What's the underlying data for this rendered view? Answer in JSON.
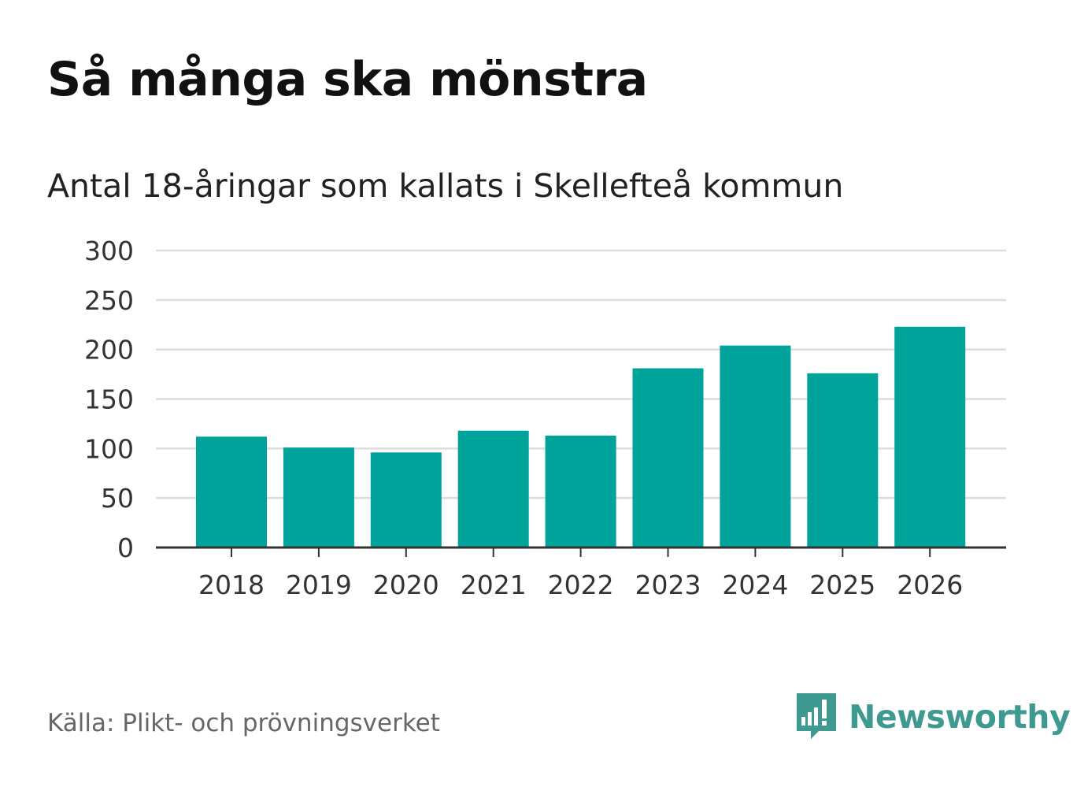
{
  "header": {
    "title": "Så många ska mönstra",
    "subtitle": "Antal 18-åringar som kallats i Skellefteå kommun"
  },
  "footer": {
    "source": "Källa: Plikt- och prövningsverket",
    "brand": "Newsworthy"
  },
  "colors": {
    "bar": "#00a39a",
    "grid": "#dddddd",
    "axis": "#333333",
    "brand": "#3e9a90"
  },
  "chart_data": {
    "type": "bar",
    "title": "Så många ska mönstra",
    "subtitle": "Antal 18-åringar som kallats i Skellefteå kommun",
    "xlabel": "",
    "ylabel": "",
    "categories": [
      "2018",
      "2019",
      "2020",
      "2021",
      "2022",
      "2023",
      "2024",
      "2025",
      "2026"
    ],
    "values": [
      112,
      101,
      96,
      118,
      113,
      181,
      204,
      176,
      223
    ],
    "ylim": [
      0,
      300
    ],
    "yticks": [
      0,
      50,
      100,
      150,
      200,
      250,
      300
    ],
    "grid": true,
    "legend": "none"
  }
}
